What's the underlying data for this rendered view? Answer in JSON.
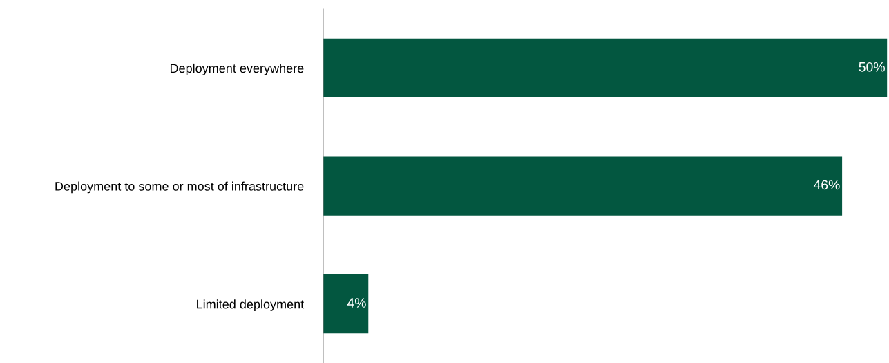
{
  "chart_data": {
    "type": "bar",
    "orientation": "horizontal",
    "categories": [
      "Deployment everywhere",
      "Deployment to some or most of infrastructure",
      "Limited deployment"
    ],
    "values": [
      50,
      46,
      4
    ],
    "value_labels": [
      "50%",
      "46%",
      "4%"
    ],
    "color": "#035740",
    "grid": false,
    "legend": false
  }
}
